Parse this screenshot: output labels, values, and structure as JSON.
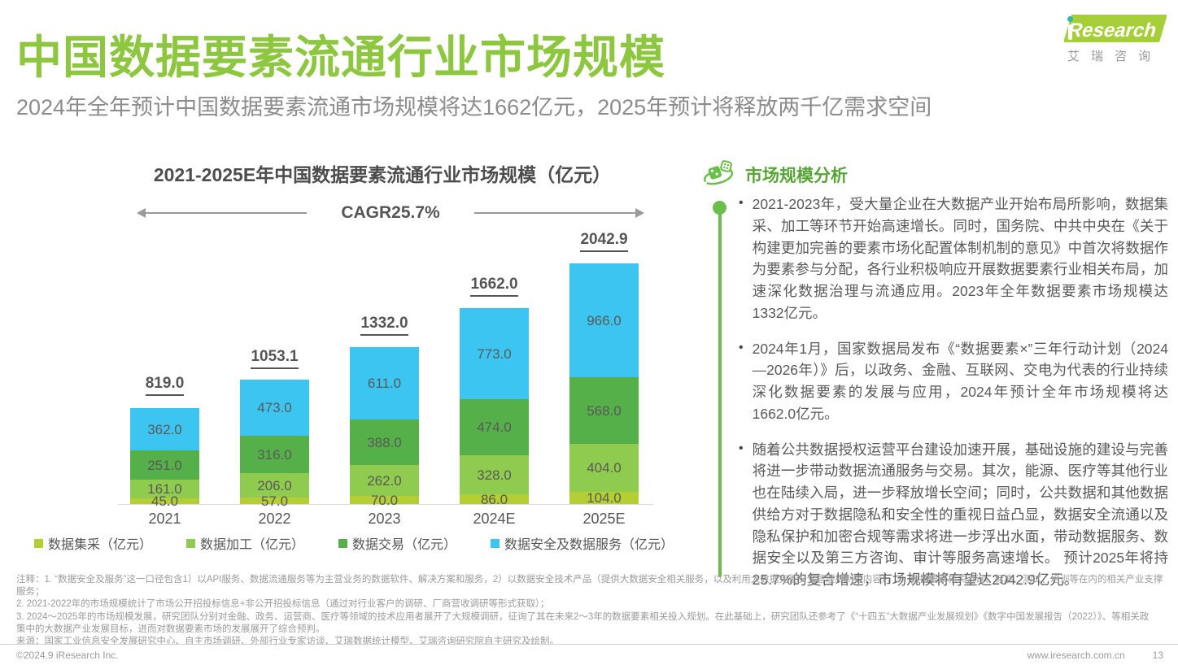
{
  "page": {
    "title": "中国数据要素流通行业市场规模",
    "subtitle": "2024年全年预计中国数据要素流通市场规模将达1662亿元，2025年预计将释放两千亿需求空间",
    "copyright": "©2024.9 iResearch Inc.",
    "website": "www.iresearch.com.cn",
    "page_number": "13"
  },
  "logo": {
    "brand": "Research",
    "cn": "艾瑞咨询"
  },
  "chart": {
    "title": "2021-2025E年中国数据要素流通行业市场规模（亿元）",
    "cagr_label": "CAGR25.7%"
  },
  "chart_data": {
    "type": "bar",
    "stacked": true,
    "title": "2021-2025E年中国数据要素流通行业市场规模（亿元）",
    "categories": [
      "2021",
      "2022",
      "2023",
      "2024E",
      "2025E"
    ],
    "series": [
      {
        "name": "数据集采（亿元）",
        "color": "#B5CE34",
        "values": [
          45.0,
          57.0,
          70.0,
          86.0,
          104.0
        ]
      },
      {
        "name": "数据加工（亿元）",
        "color": "#8FCB4E",
        "values": [
          161.0,
          206.0,
          262.0,
          328.0,
          404.0
        ]
      },
      {
        "name": "数据交易（亿元）",
        "color": "#56B04A",
        "values": [
          251.0,
          316.0,
          388.0,
          474.0,
          568.0
        ]
      },
      {
        "name": "数据安全及数据服务（亿元）",
        "color": "#3BC5F0",
        "values": [
          362.0,
          473.0,
          611.0,
          773.0,
          966.0
        ]
      }
    ],
    "totals": [
      819.0,
      1053.1,
      1332.0,
      1662.0,
      2042.9
    ],
    "cagr": "25.7%",
    "ylim": [
      0,
      2100
    ],
    "legend_position": "bottom",
    "grid": false
  },
  "analysis": {
    "title": "市场规模分析",
    "bullets": [
      "2021-2023年，受大量企业在大数据产业开始布局所影响，数据集采、加工等环节开始高速增长。同时，国务院、中共中央在《关于构建更加完善的要素市场化配置体制机制的意见》中首次将数据作为要素参与分配，各行业积极响应开展数据要素行业相关布局，加速深化数据治理与流通应用。2023年全年数据要素市场规模达1332亿元。",
      "2024年1月，国家数据局发布《“数据要素×”三年行动计划（2024—2026年）》后，以政务、金融、互联网、交电为代表的行业持续深化数据要素的发展与应用，2024年预计全年市场规模将达1662.0亿元。",
      "随着公共数据授权运营平台建设加速开展，基础设施的建设与完善将进一步带动数据流通服务与交易。其次，能源、医疗等其他行业也在陆续入局，进一步释放增长空间；同时，公共数据和其他数据供给方对于数据隐私和安全性的重视日益凸显，数据安全流通以及隐私保护和加密合规等需求将进一步浮出水面，带动数据服务、数据安全以及第三方咨询、审计等服务高速增长。 预计2025年将持25.7%的复合增速，市场规模将有望达2042.9亿元。"
    ]
  },
  "notes": {
    "lines": [
      "注释：1. “数据安全及服务”这一口径包含1）以API服务、数据流通服务等为主营业务的数据软件、解决方案和服务，2）以数据安全技术产品（提供大数据安全相关服务，以及利用大数据完善安全管理机制等内容），3）数据要素相关咨询、标准、测试、培训等在内的相关产业支撑",
      "服务；",
      "2. 2021-2022年的市场规模统计了市场公开招投标信息+非公开招投标信息（通过对行业客户的调研、厂商营收调研等形式获取）；",
      "3. 2024～2025年的市场规模发展，研究团队分别对金融、政务、运营商、医疗等领域的技术应用者展开了大规模调研，征询了其在未来2～3年的数据要素相关投入规划。在此基础上，研究团队还参考了《“十四五”大数据产业发展规划》《数字中国发展报告（2022）》、等相关政",
      "策中的大数据产业发展目标，进而对数据要素市场的发展展开了综合预判。",
      "来源：国家工业信息安全发展研究中心、自主市场调研、外部行业专家访谈、艾瑞数据统计模型、艾瑞咨询研究院自主研究及绘制。"
    ]
  },
  "colors": {
    "title_green": "#8DC63F",
    "logo_green": "#A6CE39",
    "logo_dot_teal": "#2FB5B4",
    "analysis_green": "#57A437",
    "line_green": "#6CBE4B",
    "text_gray": "#595959",
    "note_gray": "#9B9B9B"
  }
}
